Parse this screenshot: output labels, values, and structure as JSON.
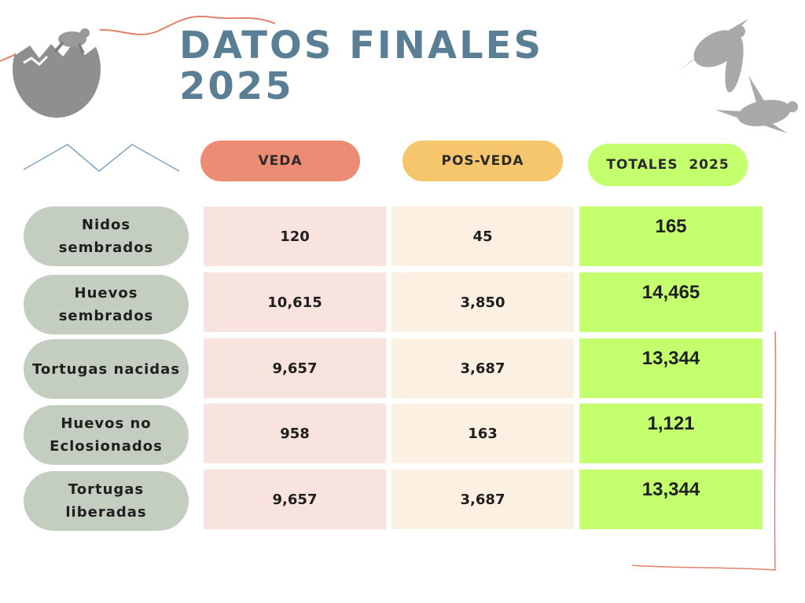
{
  "title": {
    "line1": "DATOS FINALES",
    "line2": "2025"
  },
  "colors": {
    "title": "#5a7f95",
    "veda": "#ec8c74",
    "posveda": "#f5c66c",
    "totales": "#c4ff6e",
    "row_label_bg": "#c4cec0",
    "veda_cell": "#f9e3df",
    "posveda_cell": "#fbf0e1",
    "accent_line": "#e0826a"
  },
  "headers": {
    "veda": "VEDA",
    "posveda": "POS-VEDA",
    "totales": "TOTALES  2025"
  },
  "rows": [
    {
      "label": "Nidos\nsembrados",
      "veda": "120",
      "posveda": "45",
      "total": "165"
    },
    {
      "label": "Huevos\nsembrados",
      "veda": "10,615",
      "posveda": "3,850",
      "total": "14,465"
    },
    {
      "label": "Tortugas  nacidas",
      "veda": "9,657",
      "posveda": "3,687",
      "total": "13,344"
    },
    {
      "label": "Huevos  no\nEclosionados",
      "veda": "958",
      "posveda": "163",
      "total": "1,121"
    },
    {
      "label": "Tortugas\nliberadas",
      "veda": "9,657",
      "posveda": "3,687",
      "total": "13,344"
    }
  ],
  "icons": [
    "turtle-hatchling-egg-icon",
    "sea-turtles-illustration-icon",
    "mountain-line-icon"
  ]
}
